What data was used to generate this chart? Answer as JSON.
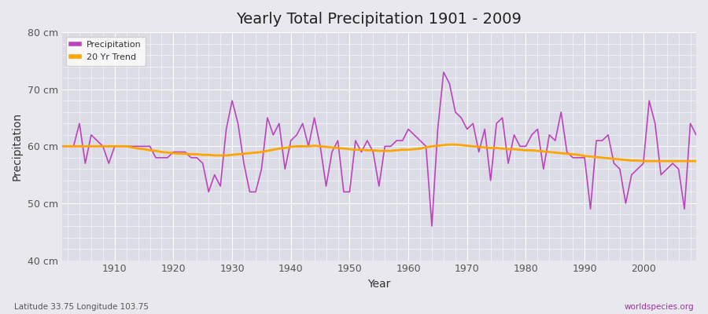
{
  "title": "Yearly Total Precipitation 1901 - 2009",
  "xlabel": "Year",
  "ylabel": "Precipitation",
  "lat_lon_label": "Latitude 33.75 Longitude 103.75",
  "source_label": "worldspecies.org",
  "ylim": [
    40,
    80
  ],
  "yticks": [
    40,
    50,
    60,
    70,
    80
  ],
  "ytick_labels": [
    "40 cm",
    "50 cm",
    "60 cm",
    "70 cm",
    "80 cm"
  ],
  "xlim": [
    1901,
    2009
  ],
  "xticks": [
    1910,
    1920,
    1930,
    1940,
    1950,
    1960,
    1970,
    1980,
    1990,
    2000
  ],
  "precip_color": "#BB44BB",
  "trend_color": "#FFA500",
  "background_color": "#E8E8EE",
  "plot_bg_color": "#DCDCE6",
  "years": [
    1901,
    1902,
    1903,
    1904,
    1905,
    1906,
    1907,
    1908,
    1909,
    1910,
    1911,
    1912,
    1913,
    1914,
    1915,
    1916,
    1917,
    1918,
    1919,
    1920,
    1921,
    1922,
    1923,
    1924,
    1925,
    1926,
    1927,
    1928,
    1929,
    1930,
    1931,
    1932,
    1933,
    1934,
    1935,
    1936,
    1937,
    1938,
    1939,
    1940,
    1941,
    1942,
    1943,
    1944,
    1945,
    1946,
    1947,
    1948,
    1949,
    1950,
    1951,
    1952,
    1953,
    1954,
    1955,
    1956,
    1957,
    1958,
    1959,
    1960,
    1961,
    1962,
    1963,
    1964,
    1965,
    1966,
    1967,
    1968,
    1969,
    1970,
    1971,
    1972,
    1973,
    1974,
    1975,
    1976,
    1977,
    1978,
    1979,
    1980,
    1981,
    1982,
    1983,
    1984,
    1985,
    1986,
    1987,
    1988,
    1989,
    1990,
    1991,
    1992,
    1993,
    1994,
    1995,
    1996,
    1997,
    1998,
    1999,
    2000,
    2001,
    2002,
    2003,
    2004,
    2005,
    2006,
    2007,
    2008,
    2009
  ],
  "precip": [
    60,
    60,
    60,
    64,
    57,
    62,
    61,
    60,
    57,
    60,
    60,
    60,
    60,
    60,
    60,
    60,
    58,
    58,
    58,
    59,
    59,
    59,
    58,
    58,
    57,
    52,
    55,
    53,
    63,
    68,
    64,
    57,
    52,
    52,
    56,
    65,
    62,
    64,
    56,
    61,
    62,
    64,
    60,
    65,
    60,
    53,
    59,
    61,
    52,
    52,
    61,
    59,
    61,
    59,
    53,
    60,
    60,
    61,
    61,
    63,
    62,
    61,
    60,
    46,
    63,
    73,
    71,
    66,
    65,
    63,
    64,
    59,
    63,
    54,
    64,
    65,
    57,
    62,
    60,
    60,
    62,
    63,
    56,
    62,
    61,
    66,
    59,
    58,
    58,
    58,
    49,
    61,
    61,
    62,
    57,
    56,
    50,
    55,
    56,
    57,
    68,
    64,
    55,
    56,
    57,
    56,
    49,
    64,
    62
  ],
  "trend": [
    60.0,
    60.0,
    60.0,
    60.0,
    60.0,
    60.0,
    60.0,
    60.0,
    60.0,
    60.0,
    60.0,
    60.0,
    59.8,
    59.6,
    59.5,
    59.3,
    59.2,
    59.0,
    58.9,
    58.8,
    58.7,
    58.7,
    58.6,
    58.6,
    58.5,
    58.5,
    58.4,
    58.4,
    58.4,
    58.5,
    58.6,
    58.7,
    58.8,
    58.9,
    59.0,
    59.2,
    59.4,
    59.6,
    59.7,
    59.9,
    60.0,
    60.0,
    60.0,
    60.1,
    60.0,
    59.9,
    59.8,
    59.7,
    59.6,
    59.5,
    59.4,
    59.4,
    59.3,
    59.3,
    59.2,
    59.2,
    59.2,
    59.3,
    59.4,
    59.4,
    59.5,
    59.6,
    59.8,
    60.0,
    60.1,
    60.2,
    60.3,
    60.3,
    60.2,
    60.1,
    60.0,
    59.9,
    59.8,
    59.7,
    59.7,
    59.6,
    59.5,
    59.5,
    59.4,
    59.3,
    59.3,
    59.2,
    59.1,
    59.0,
    58.9,
    58.8,
    58.7,
    58.6,
    58.5,
    58.3,
    58.2,
    58.1,
    58.0,
    57.9,
    57.8,
    57.7,
    57.6,
    57.5,
    57.5,
    57.4,
    57.4,
    57.4,
    57.4,
    57.4,
    57.4,
    57.4,
    57.4,
    57.4,
    57.4
  ]
}
